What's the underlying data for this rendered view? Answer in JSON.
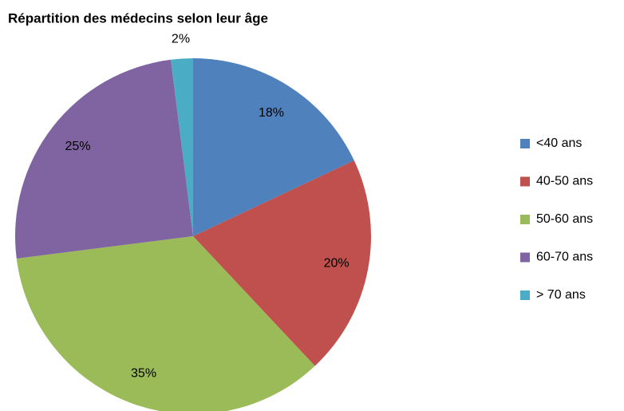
{
  "chart_data": {
    "type": "pie",
    "title": "Répartition des médecins selon leur âge",
    "categories": [
      "<40 ans",
      "40-50 ans",
      "50-60 ans",
      "60-70 ans",
      "> 70 ans"
    ],
    "values": [
      18,
      20,
      35,
      25,
      2
    ],
    "value_labels": [
      "18%",
      "20%",
      "35%",
      "25%",
      "2%"
    ],
    "colors": [
      "#4f81bd",
      "#c0504d",
      "#9bbb59",
      "#8064a2",
      "#4bacc6"
    ],
    "legend": "right"
  }
}
